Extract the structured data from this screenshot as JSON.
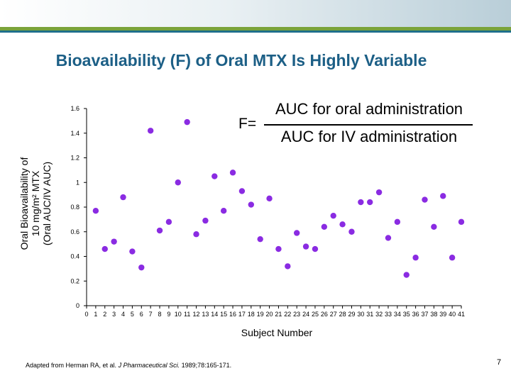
{
  "slide": {
    "title": "Bioavailability (F) of Oral MTX Is Highly Variable",
    "page_number": "7",
    "source_prefix": "Adapted from Herman RA, et al. ",
    "source_journal": "J Pharmaceutical Sci.",
    "source_suffix": " 1989;78:165-171.",
    "formula": {
      "lhs": "F=",
      "numerator": "AUC for oral administration",
      "denominator": "AUC for IV administration"
    },
    "colors": {
      "title": "#1c5f86",
      "accent_green": "#7aa33a",
      "accent_blue": "#1f6f8b",
      "marker": "#8a2be2"
    }
  },
  "chart_data": {
    "type": "scatter",
    "xlabel": "Subject Number",
    "ylabel": [
      "Oral Bioavailability of",
      "10 mg/m² MTX",
      "(Oral AUC/IV AUC)"
    ],
    "xlim": [
      0,
      41
    ],
    "ylim": [
      0,
      1.6
    ],
    "x_ticks": [
      "0",
      "1",
      "2",
      "3",
      "4",
      "5",
      "6",
      "7",
      "8",
      "9",
      "10",
      "11",
      "12",
      "13",
      "14",
      "15",
      "16",
      "17",
      "18",
      "19",
      "20",
      "21",
      "22",
      "23",
      "24",
      "25",
      "26",
      "27",
      "28",
      "29",
      "30",
      "31",
      "32",
      "33",
      "34",
      "35",
      "36",
      "37",
      "38",
      "39",
      "40",
      "41"
    ],
    "y_ticks": [
      "0",
      "0.2",
      "0.4",
      "0.6",
      "0.8",
      "1",
      "1.2",
      "1.4",
      "1.6"
    ],
    "x": [
      1,
      2,
      3,
      4,
      5,
      6,
      7,
      8,
      9,
      10,
      11,
      12,
      13,
      14,
      15,
      16,
      17,
      18,
      19,
      20,
      21,
      22,
      23,
      24,
      25,
      26,
      27,
      28,
      29,
      30,
      31,
      32,
      33,
      34,
      35,
      36,
      37,
      38,
      39,
      40,
      41
    ],
    "y": [
      0.77,
      0.46,
      0.52,
      0.88,
      0.44,
      0.31,
      1.42,
      0.61,
      0.68,
      1.0,
      1.49,
      0.58,
      0.69,
      1.05,
      0.77,
      1.08,
      0.93,
      0.82,
      0.54,
      0.87,
      0.46,
      0.32,
      0.59,
      0.48,
      0.46,
      0.64,
      0.73,
      0.66,
      0.6,
      0.84,
      0.84,
      0.92,
      0.55,
      0.68,
      0.25,
      0.39,
      0.86,
      0.64,
      0.89,
      0.39,
      0.68
    ],
    "grid": false,
    "legend": "none"
  }
}
